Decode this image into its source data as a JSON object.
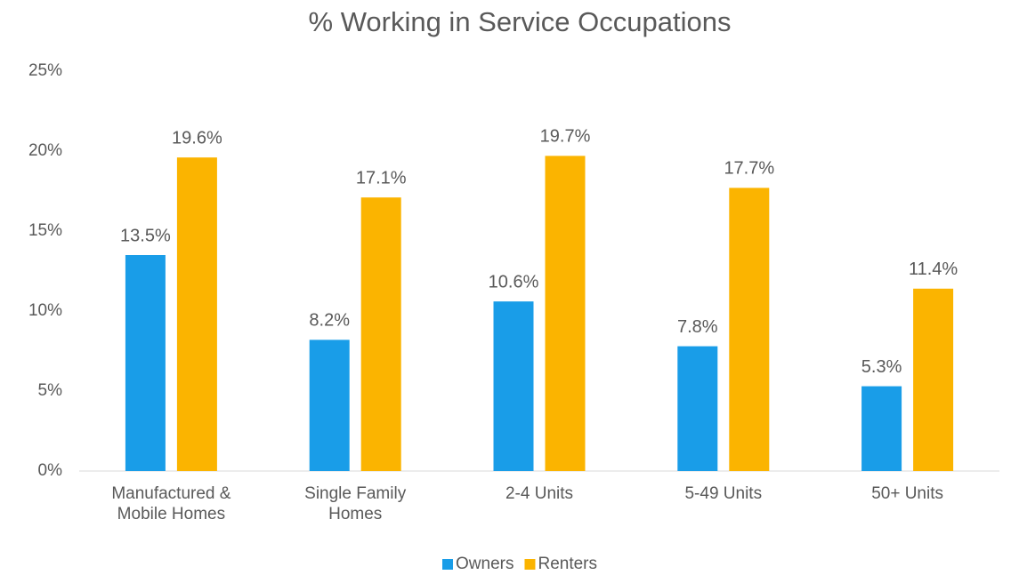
{
  "chart_data": {
    "type": "bar",
    "title": "% Working in Service Occupations",
    "categories": [
      "Manufactured & Mobile Homes",
      "Single Family Homes",
      "2-4 Units",
      "5-49 Units",
      "50+ Units"
    ],
    "series": [
      {
        "name": "Owners",
        "color": "#199de8",
        "values": [
          13.5,
          8.2,
          10.6,
          7.8,
          5.3
        ],
        "value_labels": [
          "13.5%",
          "8.2%",
          "10.6%",
          "7.8%",
          "5.3%"
        ]
      },
      {
        "name": "Renters",
        "color": "#fbb400",
        "values": [
          19.6,
          17.1,
          19.7,
          17.7,
          11.4
        ],
        "value_labels": [
          "19.6%",
          "17.1%",
          "19.7%",
          "17.7%",
          "11.4%"
        ]
      }
    ],
    "ylim": [
      0,
      25
    ],
    "yticks": [
      {
        "value": 0,
        "label": "0%"
      },
      {
        "value": 5,
        "label": "5%"
      },
      {
        "value": 10,
        "label": "10%"
      },
      {
        "value": 15,
        "label": "15%"
      },
      {
        "value": 20,
        "label": "20%"
      },
      {
        "value": 25,
        "label": "25%"
      }
    ],
    "grid": false,
    "legend": "bottom"
  }
}
